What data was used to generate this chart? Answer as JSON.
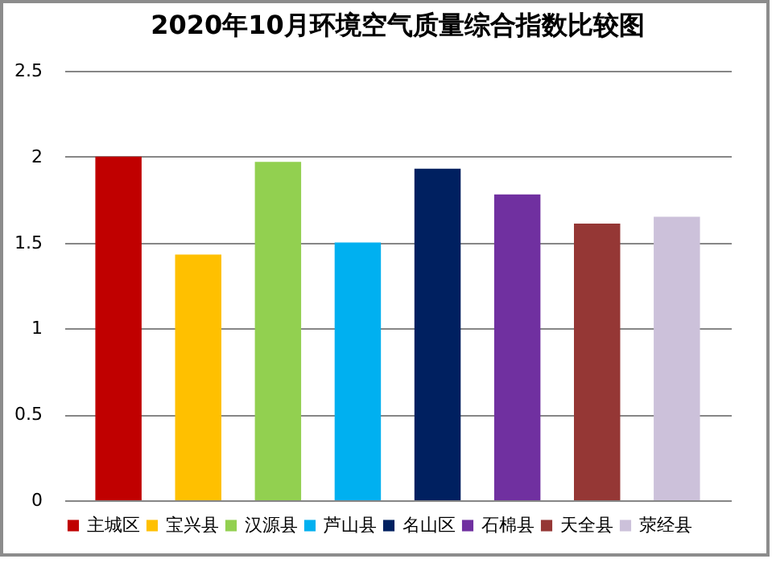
{
  "chart_data": {
    "type": "bar",
    "title": "2020年10月环境空气质量综合指数比较图",
    "categories": [
      null
    ],
    "series": [
      {
        "name": "主城区",
        "color": "#c00000",
        "values": [
          2.0
        ]
      },
      {
        "name": "宝兴县",
        "color": "#ffc000",
        "values": [
          1.43
        ]
      },
      {
        "name": "汉源县",
        "color": "#92d050",
        "values": [
          1.97
        ]
      },
      {
        "name": "芦山县",
        "color": "#00b0f0",
        "values": [
          1.5
        ]
      },
      {
        "name": "名山区",
        "color": "#002060",
        "values": [
          1.93
        ]
      },
      {
        "name": "石棉县",
        "color": "#7030a0",
        "values": [
          1.78
        ]
      },
      {
        "name": "天全县",
        "color": "#953735",
        "values": [
          1.61
        ]
      },
      {
        "name": "荥经县",
        "color": "#ccc1da",
        "values": [
          1.65
        ]
      }
    ],
    "ylim": [
      0,
      2.5
    ],
    "yticks": [
      0,
      0.5,
      1,
      1.5,
      2,
      2.5
    ],
    "grid": "y",
    "legend": "bottom",
    "tick_labels": "y"
  }
}
